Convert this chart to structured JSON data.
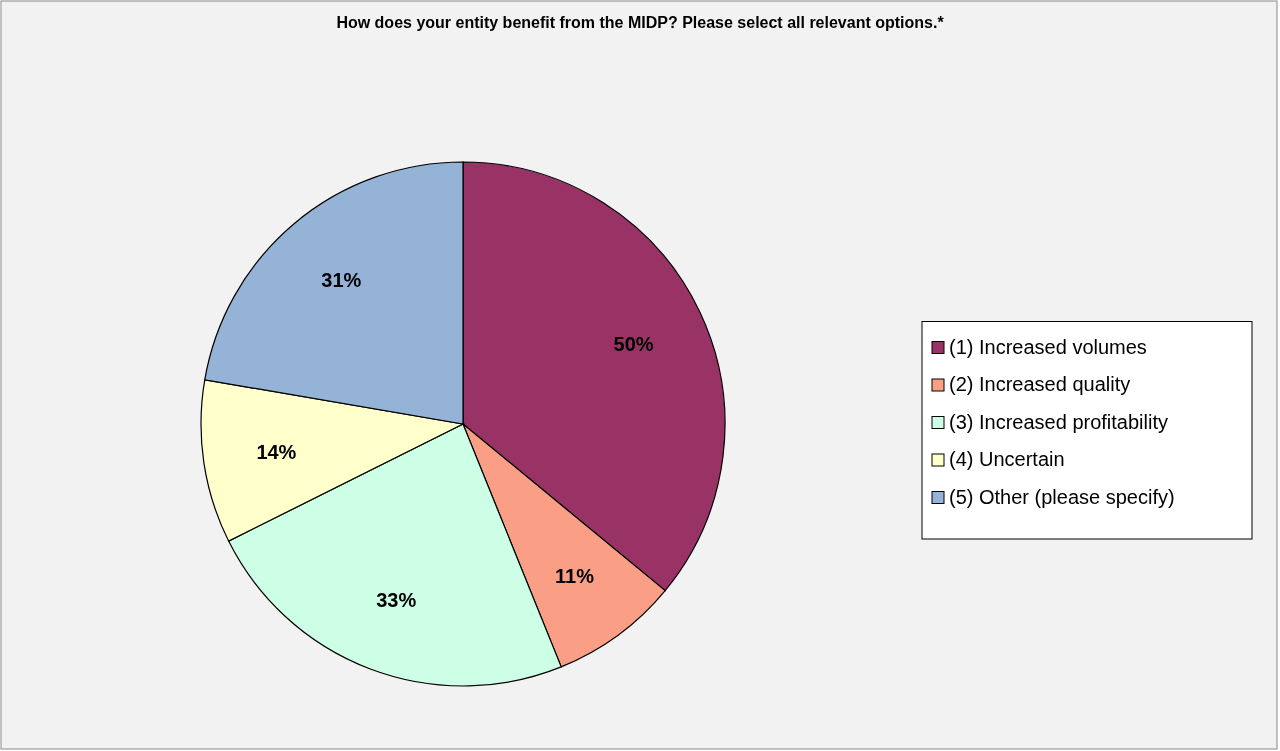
{
  "chart_data": {
    "type": "pie",
    "title": "How does your entity benefit from the MIDP? Please select all relevant options.*",
    "categories": [
      "(1) Increased volumes",
      "(2) Increased quality",
      "(3) Increased profitability",
      "(4) Uncertain",
      "(5) Other (please specify)"
    ],
    "values": [
      50,
      11,
      33,
      14,
      31
    ],
    "value_labels": [
      "50%",
      "11%",
      "33%",
      "14%",
      "31%"
    ],
    "colors": [
      "#993366",
      "#fa9f86",
      "#ccffe6",
      "#ffffcc",
      "#95b3d7"
    ],
    "legend": "right"
  }
}
